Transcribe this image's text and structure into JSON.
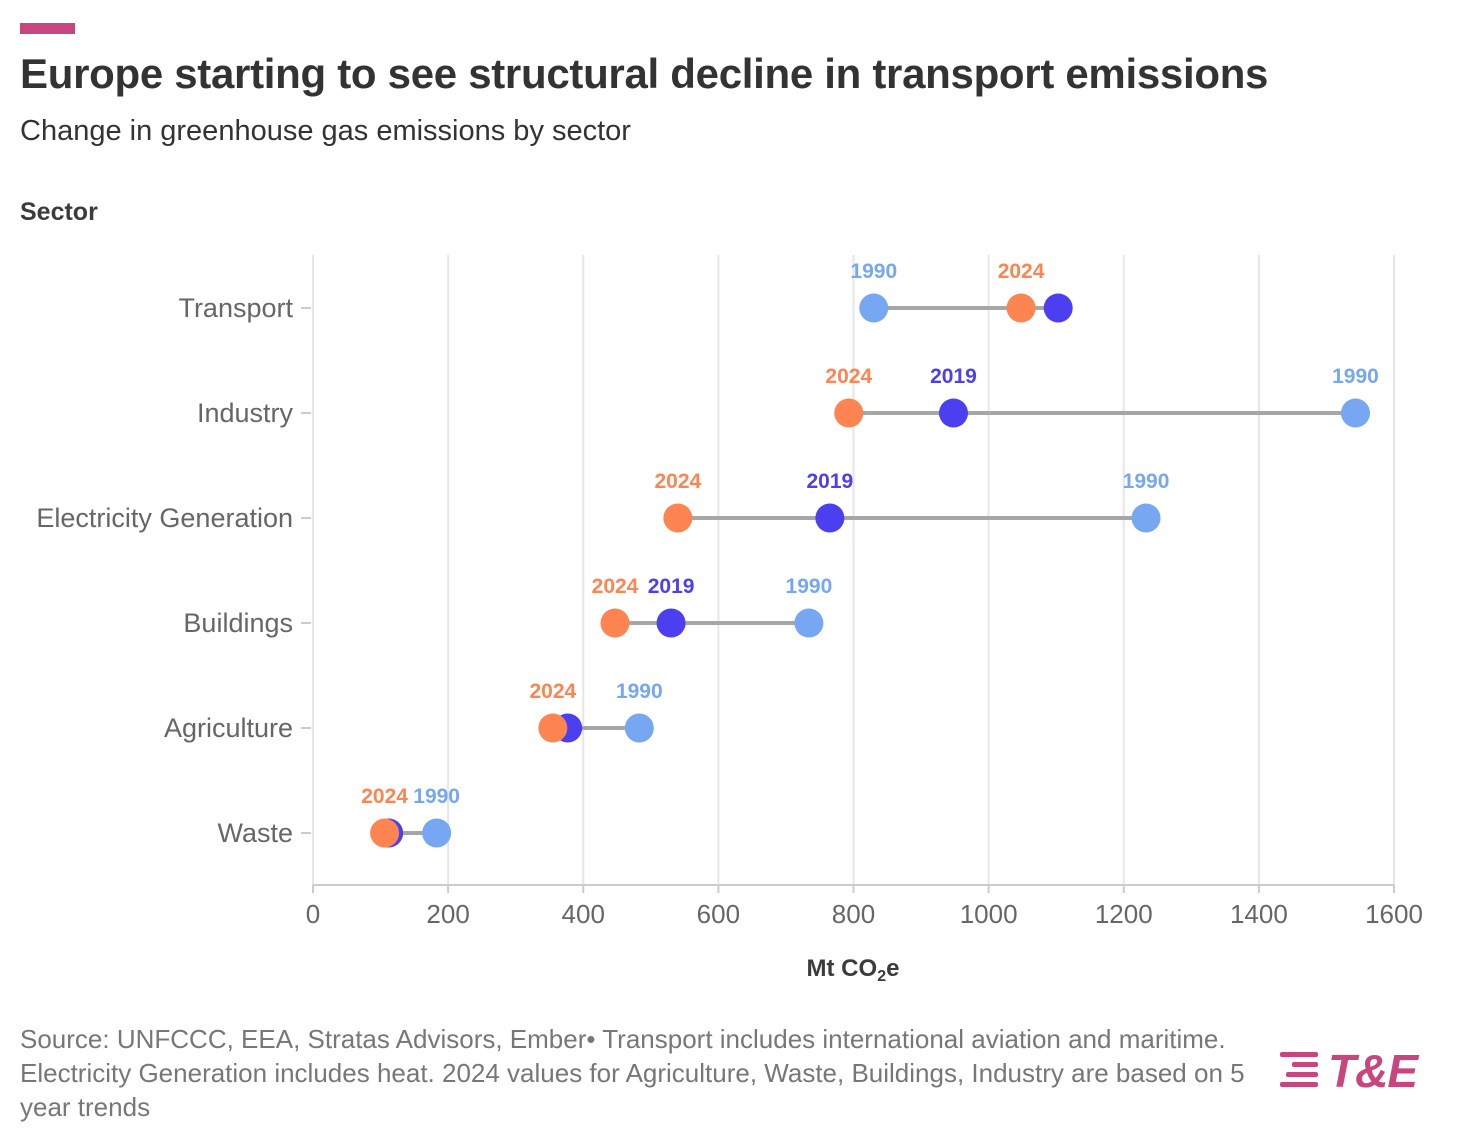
{
  "title": "Europe starting to see structural decline in transport emissions",
  "subtitle": "Change in greenhouse gas emissions by sector",
  "y_axis_title": "Sector",
  "x_axis_title_main": "Mt CO",
  "x_axis_title_sub": "2",
  "x_axis_title_tail": "e",
  "source": "Source: UNFCCC, EEA, Stratas Advisors, Ember• Transport includes international aviation and maritime. Electricity Generation includes heat. 2024 values for Agriculture, Waste, Buildings, Industry are based on 5 year trends",
  "logo_text": "T&E",
  "colors": {
    "accent": "#c8467f",
    "y1990": "#77a6f2",
    "y2019": "#4b3ff0",
    "y2024": "#fe8451",
    "connector": "#a6a6a6",
    "grid": "#e6e6e6"
  },
  "chart_data": {
    "type": "dumbbell",
    "xlabel": "Mt CO2e",
    "ylabel": "Sector",
    "xlim": [
      0,
      1600
    ],
    "xticks": [
      0,
      200,
      400,
      600,
      800,
      1000,
      1200,
      1400,
      1600
    ],
    "categories": [
      "Transport",
      "Industry",
      "Electricity Generation",
      "Buildings",
      "Agriculture",
      "Waste"
    ],
    "series": [
      {
        "name": "1990",
        "color": "#77a6f2",
        "values": [
          830,
          1543,
          1233,
          734,
          483,
          183
        ]
      },
      {
        "name": "2019",
        "color": "#4b3ff0",
        "values": [
          1103,
          948,
          765,
          530,
          377,
          112
        ]
      },
      {
        "name": "2024",
        "color": "#fe8451",
        "values": [
          1048,
          793,
          540,
          447,
          355,
          106
        ]
      }
    ],
    "point_labels": [
      {
        "category": "Transport",
        "labels": [
          "1990",
          "2024"
        ]
      },
      {
        "category": "Industry",
        "labels": [
          "2024",
          "2019",
          "1990"
        ]
      },
      {
        "category": "Electricity Generation",
        "labels": [
          "2024",
          "2019",
          "1990"
        ]
      },
      {
        "category": "Buildings",
        "labels": [
          "2024",
          "2019",
          "1990"
        ]
      },
      {
        "category": "Agriculture",
        "labels": [
          "2024",
          "1990"
        ]
      },
      {
        "category": "Waste",
        "labels": [
          "2024",
          "1990"
        ]
      }
    ],
    "grid": true
  }
}
